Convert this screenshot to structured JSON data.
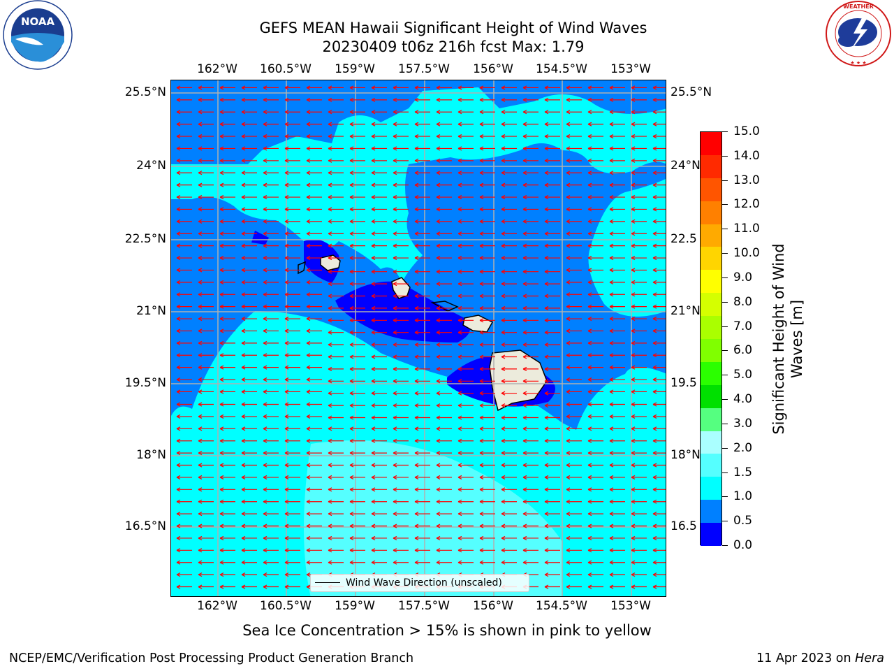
{
  "title": {
    "line1": "GEFS MEAN Hawaii Significant Height of Wind Waves",
    "line2": "20230409 t06z 216h fcst   Max: 1.79"
  },
  "map": {
    "lon_labels": [
      "162°W",
      "160.5°W",
      "159°W",
      "157.5°W",
      "156°W",
      "154.5°W",
      "153°W"
    ],
    "lat_labels_left": [
      "25.5°N",
      "24°N",
      "22.5°N",
      "21°N",
      "19.5°N",
      "18°N",
      "16.5°N"
    ],
    "lat_labels_right": [
      "25.5°N",
      "24°N",
      "22.5",
      "21°N",
      "19.5",
      "18°N",
      "16.5"
    ],
    "legend": "Wind Wave Direction (unscaled)",
    "arrow_color": "#ff0000",
    "fill_colors": {
      "deep_low": "#0000ff",
      "low": "#0080ff",
      "mid": "#00ffff",
      "high": "#55ffff",
      "land": "#ecebdc"
    }
  },
  "colorbar": {
    "title": "Significant Height of Wind\nWaves [m]",
    "title_line1": "Significant Height of Wind",
    "title_line2": "Waves [m]",
    "ticks": [
      "15.0",
      "14.0",
      "13.0",
      "12.0",
      "11.0",
      "10.0",
      "9.0",
      "8.0",
      "7.0",
      "6.0",
      "5.0",
      "4.0",
      "3.0",
      "2.0",
      "1.5",
      "1.0",
      "0.5",
      "0.0"
    ],
    "colors_top_to_bottom": [
      "#ff0000",
      "#ff2a00",
      "#ff5500",
      "#ff8000",
      "#ffaa00",
      "#ffd500",
      "#ffff00",
      "#d5ff00",
      "#aaff00",
      "#80ff00",
      "#2bff00",
      "#00e000",
      "#55ff80",
      "#aaffff",
      "#55ffff",
      "#00ffff",
      "#0080ff",
      "#0000ff"
    ]
  },
  "footer": {
    "sea_ice": "Sea Ice Concentration > 15% is shown in pink to yellow",
    "credit": "NCEP/EMC/Verification Post Processing Product Generation Branch",
    "date_prefix": "11 Apr 2023 on ",
    "date_machine": "Hera"
  },
  "logos": {
    "noaa_text": "NOAA",
    "nws_text": "NATIONAL WEATHER SERVICE"
  }
}
